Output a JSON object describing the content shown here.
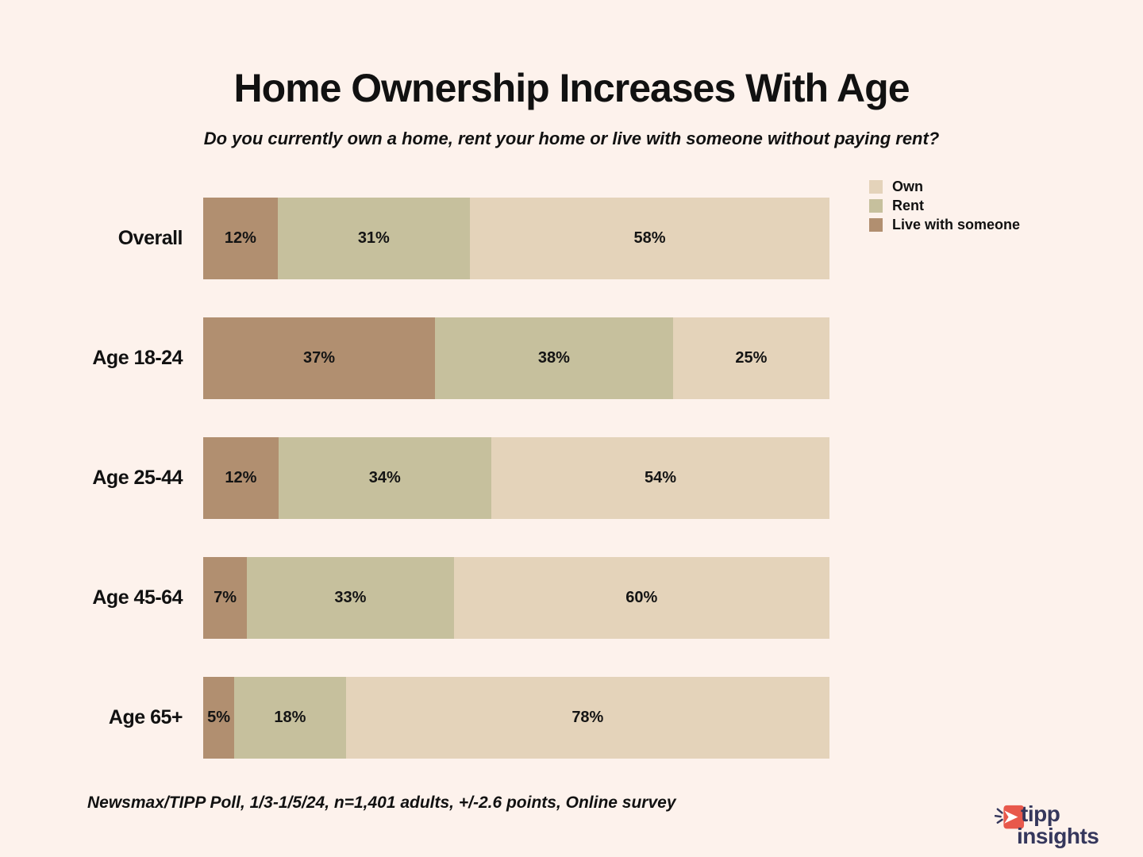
{
  "chart_data": {
    "type": "bar",
    "orientation": "horizontal-stacked",
    "title": "Home Ownership Increases With Age",
    "subtitle": "Do you currently own a home, rent your home or live with someone without paying rent?",
    "categories": [
      "Overall",
      "Age 18-24",
      "Age 25-44",
      "Age 45-64",
      "Age 65+"
    ],
    "series": [
      {
        "name": "Live with someone",
        "color": "#b18f70",
        "values": [
          12,
          37,
          12,
          7,
          5
        ]
      },
      {
        "name": "Rent",
        "color": "#c6c09d",
        "values": [
          31,
          38,
          34,
          33,
          18
        ]
      },
      {
        "name": "Own",
        "color": "#e4d3ba",
        "values": [
          58,
          25,
          54,
          60,
          78
        ]
      }
    ],
    "value_suffix": "%",
    "xlim": [
      0,
      100
    ],
    "grid": false,
    "legend": {
      "position": "top-right",
      "items": [
        {
          "label": "Own",
          "color": "#e4d3ba"
        },
        {
          "label": "Rent",
          "color": "#c6c09d"
        },
        {
          "label": "Live with someone",
          "color": "#b18f70"
        }
      ]
    },
    "footnote": "Newsmax/TIPP Poll, 1/3-1/5/24, n=1,401 adults, +/-2.6 points, Online survey"
  },
  "colors": {
    "background": "#fdf2ec",
    "text": "#111111",
    "logo_navy": "#35375c",
    "logo_coral": "#e8584b"
  },
  "logo": {
    "line1": "tipp",
    "line2": "insights"
  }
}
